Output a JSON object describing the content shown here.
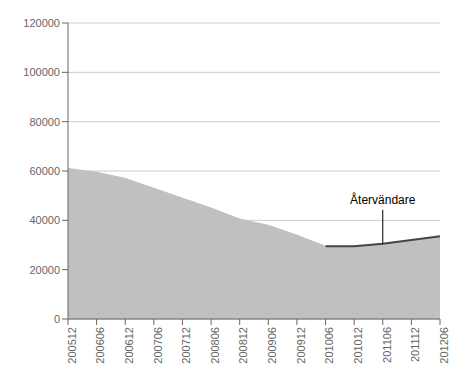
{
  "chart_data": {
    "type": "area",
    "categories": [
      "200512",
      "200606",
      "200612",
      "200706",
      "200712",
      "200806",
      "200812",
      "200906",
      "200912",
      "201006",
      "201012",
      "201106",
      "201112",
      "201206"
    ],
    "series": [
      {
        "type": "area",
        "color": "#c0c0c0",
        "values": [
          61000,
          59500,
          57000,
          53000,
          49000,
          45000,
          40500,
          38000,
          34000,
          29500,
          29000,
          30500,
          32000,
          34000
        ]
      },
      {
        "type": "line",
        "color": "#444444",
        "values": [
          null,
          null,
          null,
          null,
          null,
          null,
          null,
          null,
          null,
          29500,
          29500,
          30500,
          32000,
          33500
        ]
      }
    ],
    "annotation": "Återvändare",
    "ylim": [
      0,
      120000
    ],
    "yticks": [
      0,
      20000,
      40000,
      60000,
      80000,
      100000,
      120000
    ],
    "grid": true
  }
}
